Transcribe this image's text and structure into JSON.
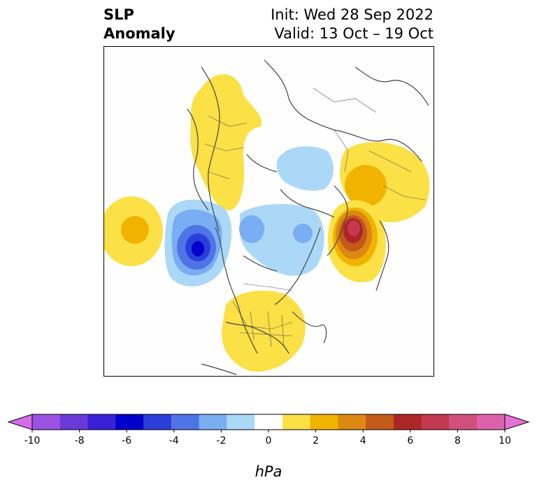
{
  "title": {
    "variable_line1": "SLP",
    "variable_line2": "Anomaly",
    "init": "Init: Wed 28 Sep 2022",
    "valid": "Valid: 13 Oct – 19 Oct"
  },
  "colorbar": {
    "unit": "hPa",
    "ticks": [
      "-10",
      "-8",
      "-6",
      "-4",
      "-2",
      "0",
      "2",
      "4",
      "6",
      "8",
      "10"
    ],
    "colors": [
      "#d46ce8",
      "#9b52e0",
      "#6a3ad8",
      "#3c1fd8",
      "#0000cc",
      "#2a3fd8",
      "#4f74e6",
      "#7aaef2",
      "#abd8f7",
      "#ffffff",
      "#fbe046",
      "#f0b400",
      "#dc8812",
      "#c35a1a",
      "#ad2626",
      "#c43850",
      "#d1507a",
      "#dc63aa",
      "#e670d6"
    ],
    "extend": "both"
  },
  "map": {
    "projection": "north-polar-stereographic",
    "region": "Northern Hemisphere",
    "anomalies": [
      {
        "name": "positive-anomaly-europe",
        "sign": "positive",
        "peak_hpa": 2
      },
      {
        "name": "positive-anomaly-west-atlantic-edge",
        "sign": "positive",
        "peak_hpa": 2
      },
      {
        "name": "negative-anomaly-gulf-of-alaska",
        "sign": "negative",
        "peak_hpa": -6
      },
      {
        "name": "negative-anomaly-arctic-canada",
        "sign": "negative",
        "peak_hpa": -2
      },
      {
        "name": "negative-anomaly-siberia",
        "sign": "negative",
        "peak_hpa": -1
      },
      {
        "name": "positive-anomaly-north-pacific",
        "sign": "positive",
        "peak_hpa": 8
      },
      {
        "name": "positive-anomaly-east-asia",
        "sign": "positive",
        "peak_hpa": 3
      },
      {
        "name": "positive-anomaly-united-states",
        "sign": "positive",
        "peak_hpa": 1
      }
    ]
  }
}
